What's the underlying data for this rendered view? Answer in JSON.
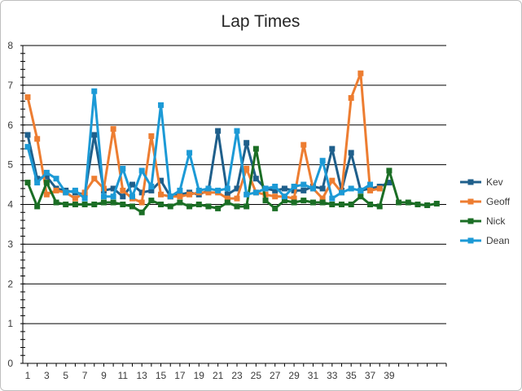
{
  "chart_data": {
    "type": "line",
    "title": "Lap Times",
    "xlabel": "",
    "ylabel": "",
    "ylim": [
      0,
      8
    ],
    "xlim": [
      1,
      45
    ],
    "y_ticks": [
      0,
      1,
      2,
      3,
      4,
      5,
      6,
      7,
      8
    ],
    "x_ticks": [
      1,
      3,
      5,
      7,
      9,
      11,
      13,
      15,
      17,
      19,
      21,
      23,
      25,
      27,
      29,
      31,
      33,
      35,
      37,
      39
    ],
    "grid": true,
    "legend_position": "right",
    "series": [
      {
        "name": "Kev",
        "color": "#1f5f8b",
        "values": [
          5.75,
          4.65,
          4.7,
          4.4,
          4.35,
          4.3,
          4.25,
          5.75,
          4.35,
          4.4,
          4.2,
          4.5,
          4.3,
          4.35,
          4.6,
          4.2,
          4.25,
          4.3,
          4.25,
          4.35,
          5.85,
          4.25,
          4.4,
          5.55,
          4.65,
          4.4,
          4.35,
          4.4,
          4.35,
          4.35,
          4.45,
          4.4,
          5.4,
          4.35,
          5.3,
          4.35,
          4.4,
          4.45,
          4.55
        ]
      },
      {
        "name": "Geoff",
        "color": "#ed7d31",
        "values": [
          6.7,
          5.65,
          4.25,
          4.35,
          4.3,
          4.15,
          4.3,
          4.65,
          4.4,
          5.9,
          4.35,
          4.15,
          4.05,
          5.72,
          4.25,
          4.2,
          4.2,
          4.25,
          4.3,
          4.3,
          4.3,
          4.15,
          4.15,
          4.9,
          4.3,
          4.25,
          4.2,
          4.2,
          4.15,
          5.5,
          4.4,
          4.15,
          4.6,
          4.3,
          6.68,
          7.3,
          4.35,
          4.4
        ]
      },
      {
        "name": "Nick",
        "color": "#1b6e25",
        "values": [
          4.55,
          3.95,
          4.55,
          4.05,
          4.0,
          4.0,
          4.0,
          4.0,
          4.05,
          4.05,
          4.0,
          3.95,
          3.8,
          4.1,
          4.0,
          3.95,
          4.05,
          3.95,
          4.0,
          3.95,
          3.9,
          4.05,
          3.95,
          3.95,
          5.4,
          4.1,
          3.9,
          4.1,
          4.05,
          4.1,
          4.05,
          4.05,
          4.0,
          4.0,
          4.0,
          4.2,
          4.0,
          3.95,
          4.85,
          4.05,
          4.05,
          4.0,
          3.98,
          4.02
        ]
      },
      {
        "name": "Dean",
        "color": "#1c9ad6",
        "values": [
          5.45,
          4.55,
          4.8,
          4.65,
          4.3,
          4.35,
          4.15,
          6.85,
          4.2,
          4.2,
          4.9,
          4.2,
          4.85,
          4.45,
          6.5,
          4.2,
          4.35,
          5.3,
          4.35,
          4.4,
          4.35,
          4.4,
          5.85,
          4.25,
          4.3,
          4.4,
          4.45,
          4.2,
          4.45,
          4.5,
          4.4,
          5.1,
          4.15,
          4.3,
          4.4,
          4.35,
          4.5
        ]
      }
    ]
  }
}
